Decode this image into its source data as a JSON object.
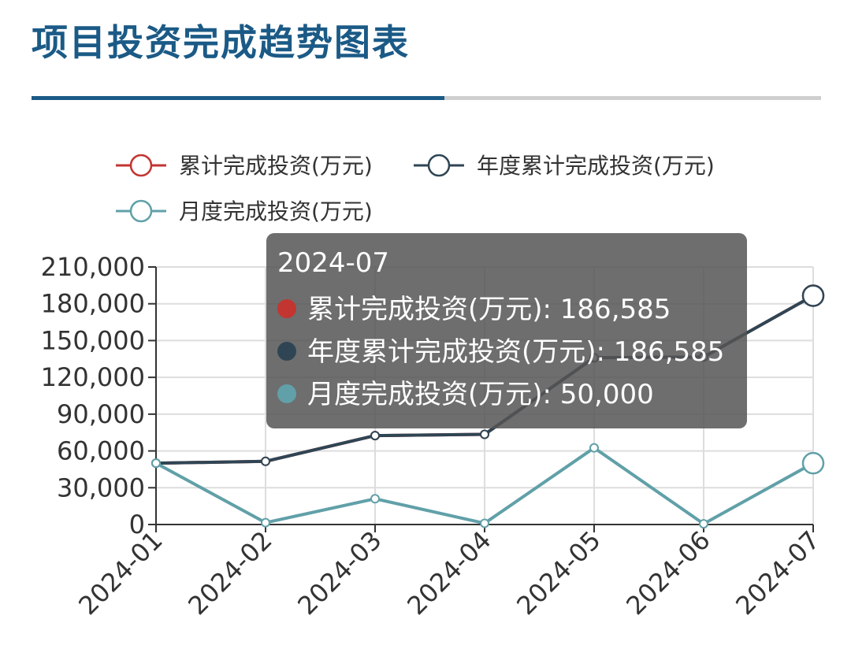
{
  "page": {
    "title": "项目投资完成趋势图表"
  },
  "chart_data": {
    "type": "line",
    "categories": [
      "2024-01",
      "2024-02",
      "2024-03",
      "2024-04",
      "2024-05",
      "2024-06",
      "2024-07"
    ],
    "series": [
      {
        "name": "累计完成投资(万元)",
        "color": "#c23531",
        "values": [
          50000,
          51500,
          72500,
          73500,
          136000,
          136585,
          186585
        ]
      },
      {
        "name": "年度累计完成投资(万元)",
        "color": "#2f4554",
        "values": [
          50000,
          51500,
          72500,
          73500,
          136000,
          136585,
          186585
        ]
      },
      {
        "name": "月度完成投资(万元)",
        "color": "#61a0a8",
        "values": [
          50000,
          1500,
          21000,
          1000,
          62500,
          585,
          50000
        ]
      }
    ],
    "y_ticks": [
      "0",
      "30,000",
      "60,000",
      "90,000",
      "120,000",
      "150,000",
      "180,000",
      "210,000"
    ],
    "ylim": [
      0,
      210000
    ],
    "grid": true,
    "legend_position": "top"
  },
  "tooltip": {
    "category": "2024-07",
    "rows": [
      {
        "label": "累计完成投资(万元)",
        "value": "186,585",
        "color": "#c23531"
      },
      {
        "label": "年度累计完成投资(万元)",
        "value": "186,585",
        "color": "#2f4554"
      },
      {
        "label": "月度完成投资(万元)",
        "value": "50,000",
        "color": "#61a0a8"
      }
    ]
  }
}
